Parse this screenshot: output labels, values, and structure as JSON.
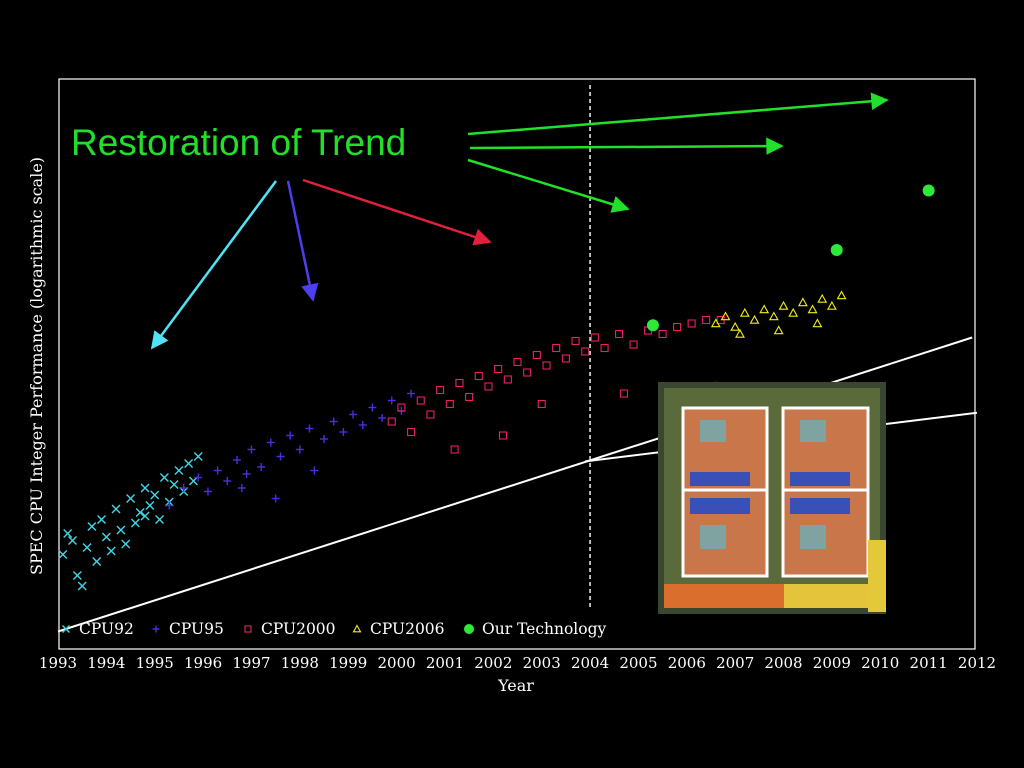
{
  "slide": {
    "annotation": "Restoration of Trend",
    "colors": {
      "background": "#000000",
      "annotation_text": "#22e02a",
      "arrow_green": "#22e02a",
      "arrow_cyan": "#4fe3f5",
      "arrow_blue": "#4d3ef0",
      "arrow_red": "#e0203c",
      "trend_line": "#ffffff",
      "frame": "#ffffff"
    },
    "inset_image": "multi-core processor die photograph (four cores outlined)"
  },
  "chart_data": {
    "type": "scatter",
    "title": "",
    "xlabel": "Year",
    "ylabel": "SPEC CPU Integer Performance (logarithmic scale)",
    "yscale": "log",
    "xlim": [
      1993,
      2012
    ],
    "x_ticks": [
      "1993",
      "1994",
      "1995",
      "1996",
      "1997",
      "1998",
      "1999",
      "2000",
      "2001",
      "2002",
      "2003",
      "2004",
      "2005",
      "2006",
      "2007",
      "2008",
      "2009",
      "2010",
      "2011",
      "2012"
    ],
    "grid": false,
    "legend_position": "bottom-left",
    "reference_line": {
      "x": 2004,
      "style": "dashed"
    },
    "trend_lines": [
      {
        "name": "historical trend",
        "points": [
          [
            1993.0,
            0.14
          ],
          [
            2011.9,
            0.98
          ]
        ]
      },
      {
        "name": "post-2004 trend",
        "points": [
          [
            2003.9,
            0.626
          ],
          [
            2012.0,
            0.765
          ]
        ]
      }
    ],
    "series": [
      {
        "name": "CPU92",
        "marker": "x",
        "color": "#3fd7e6",
        "points": [
          [
            1993.1,
            0.36
          ],
          [
            1993.2,
            0.42
          ],
          [
            1993.3,
            0.4
          ],
          [
            1993.4,
            0.3
          ],
          [
            1993.6,
            0.38
          ],
          [
            1993.7,
            0.44
          ],
          [
            1993.8,
            0.34
          ],
          [
            1993.9,
            0.46
          ],
          [
            1994.0,
            0.41
          ],
          [
            1994.1,
            0.37
          ],
          [
            1994.2,
            0.49
          ],
          [
            1994.3,
            0.43
          ],
          [
            1994.4,
            0.39
          ],
          [
            1994.5,
            0.52
          ],
          [
            1994.6,
            0.45
          ],
          [
            1994.7,
            0.48
          ],
          [
            1994.8,
            0.55
          ],
          [
            1994.9,
            0.5
          ],
          [
            1995.0,
            0.53
          ],
          [
            1995.1,
            0.46
          ],
          [
            1995.2,
            0.58
          ],
          [
            1995.3,
            0.51
          ],
          [
            1995.4,
            0.56
          ],
          [
            1995.5,
            0.6
          ],
          [
            1995.6,
            0.54
          ],
          [
            1995.7,
            0.62
          ],
          [
            1995.8,
            0.57
          ],
          [
            1995.9,
            0.64
          ],
          [
            1993.5,
            0.27
          ],
          [
            1994.8,
            0.47
          ]
        ]
      },
      {
        "name": "CPU95",
        "marker": "+",
        "color": "#4a2fe0",
        "points": [
          [
            1995.3,
            0.5
          ],
          [
            1995.6,
            0.55
          ],
          [
            1995.9,
            0.58
          ],
          [
            1996.1,
            0.54
          ],
          [
            1996.3,
            0.6
          ],
          [
            1996.5,
            0.57
          ],
          [
            1996.7,
            0.63
          ],
          [
            1996.9,
            0.59
          ],
          [
            1997.0,
            0.66
          ],
          [
            1997.2,
            0.61
          ],
          [
            1997.4,
            0.68
          ],
          [
            1997.6,
            0.64
          ],
          [
            1997.8,
            0.7
          ],
          [
            1998.0,
            0.66
          ],
          [
            1998.2,
            0.72
          ],
          [
            1998.3,
            0.6
          ],
          [
            1998.5,
            0.69
          ],
          [
            1998.7,
            0.74
          ],
          [
            1998.9,
            0.71
          ],
          [
            1999.1,
            0.76
          ],
          [
            1999.3,
            0.73
          ],
          [
            1999.5,
            0.78
          ],
          [
            1999.7,
            0.75
          ],
          [
            1999.9,
            0.8
          ],
          [
            2000.1,
            0.77
          ],
          [
            2000.3,
            0.82
          ],
          [
            1997.5,
            0.52
          ],
          [
            1996.8,
            0.55
          ]
        ]
      },
      {
        "name": "CPU2000",
        "marker": "square",
        "color": "#e8206a",
        "points": [
          [
            1999.9,
            0.74
          ],
          [
            2000.1,
            0.78
          ],
          [
            2000.3,
            0.71
          ],
          [
            2000.5,
            0.8
          ],
          [
            2000.7,
            0.76
          ],
          [
            2000.9,
            0.83
          ],
          [
            2001.1,
            0.79
          ],
          [
            2001.3,
            0.85
          ],
          [
            2001.5,
            0.81
          ],
          [
            2001.7,
            0.87
          ],
          [
            2001.9,
            0.84
          ],
          [
            2002.1,
            0.89
          ],
          [
            2002.3,
            0.86
          ],
          [
            2002.5,
            0.91
          ],
          [
            2002.7,
            0.88
          ],
          [
            2002.9,
            0.93
          ],
          [
            2003.1,
            0.9
          ],
          [
            2003.3,
            0.95
          ],
          [
            2003.5,
            0.92
          ],
          [
            2003.7,
            0.97
          ],
          [
            2003.9,
            0.94
          ],
          [
            2004.1,
            0.98
          ],
          [
            2004.3,
            0.95
          ],
          [
            2004.6,
            0.99
          ],
          [
            2004.9,
            0.96
          ],
          [
            2005.2,
            1.0
          ],
          [
            2005.5,
            0.99
          ],
          [
            2005.8,
            1.01
          ],
          [
            2006.1,
            1.02
          ],
          [
            2006.4,
            1.03
          ],
          [
            2006.7,
            1.03
          ],
          [
            2001.2,
            0.66
          ],
          [
            2002.2,
            0.7
          ],
          [
            2003.0,
            0.79
          ],
          [
            2004.7,
            0.82
          ],
          [
            2006.5,
            0.55
          ]
        ]
      },
      {
        "name": "CPU2006",
        "marker": "triangle",
        "color": "#f2ee18",
        "points": [
          [
            2006.6,
            1.02
          ],
          [
            2006.8,
            1.04
          ],
          [
            2007.0,
            1.01
          ],
          [
            2007.2,
            1.05
          ],
          [
            2007.4,
            1.03
          ],
          [
            2007.6,
            1.06
          ],
          [
            2007.8,
            1.04
          ],
          [
            2008.0,
            1.07
          ],
          [
            2008.2,
            1.05
          ],
          [
            2008.4,
            1.08
          ],
          [
            2008.6,
            1.06
          ],
          [
            2008.8,
            1.09
          ],
          [
            2009.0,
            1.07
          ],
          [
            2009.2,
            1.1
          ],
          [
            2007.1,
            0.99
          ],
          [
            2007.9,
            1.0
          ],
          [
            2008.7,
            1.02
          ],
          [
            2006.6,
            0.84
          ],
          [
            2006.6,
            0.8
          ],
          [
            2006.6,
            0.63
          ]
        ]
      },
      {
        "name": "Our Technology",
        "marker": "dot",
        "color": "#2ee83a",
        "points": [
          [
            2005.3,
            1.015
          ],
          [
            2009.1,
            1.23
          ],
          [
            2011.0,
            1.4
          ]
        ]
      }
    ]
  }
}
